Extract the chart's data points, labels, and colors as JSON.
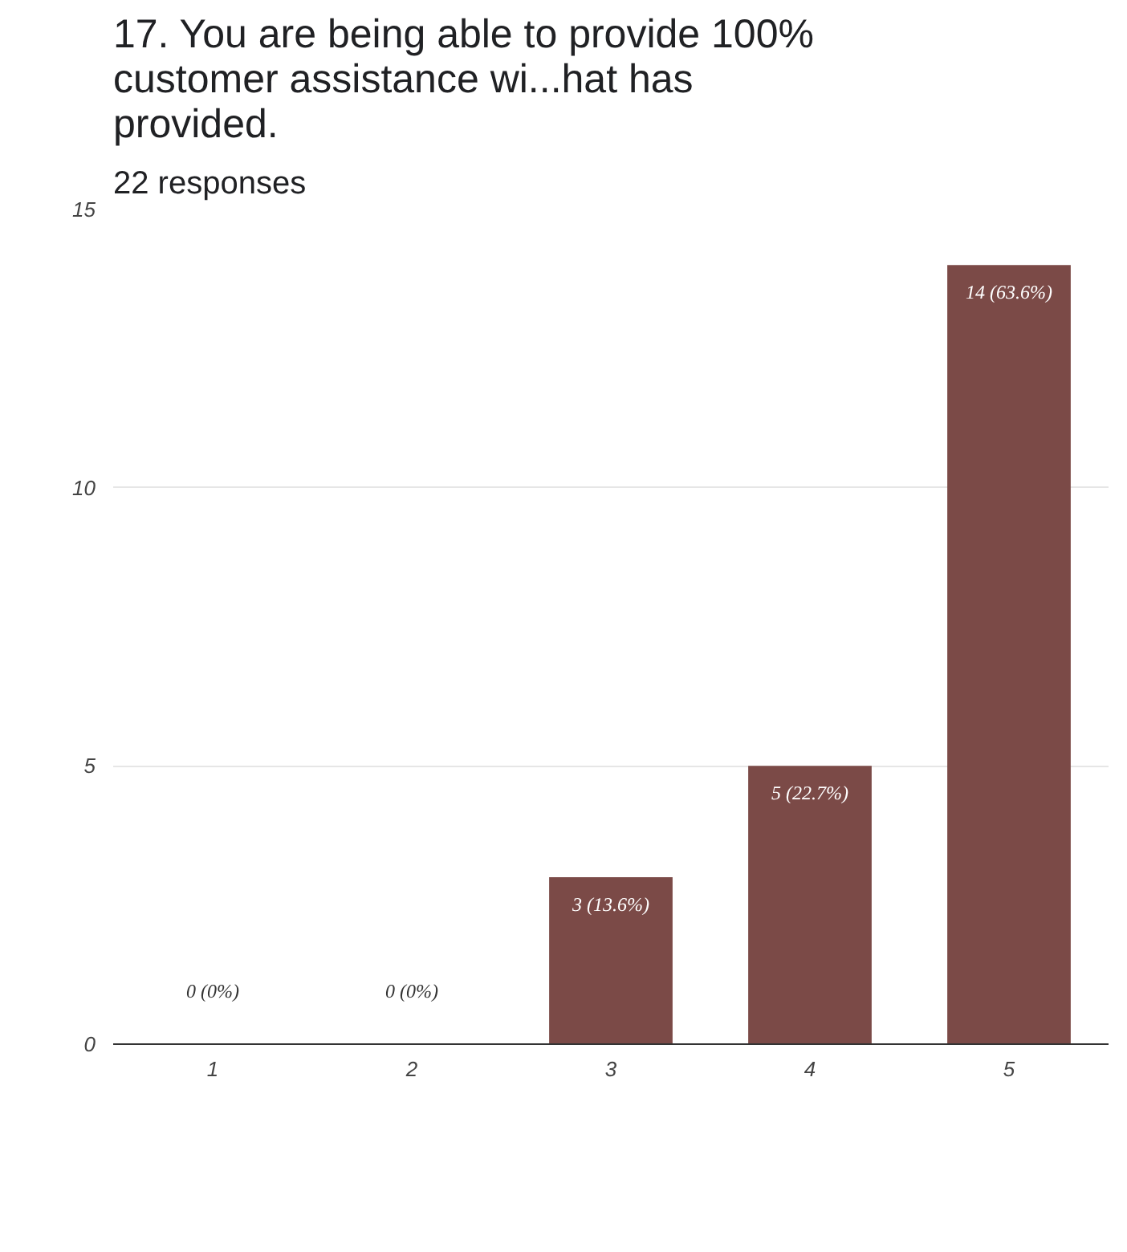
{
  "chart_data": {
    "type": "bar",
    "title": "17. You are being able to provide 100% customer assistance wi...hat has provided.",
    "subtitle": "22 responses",
    "categories": [
      "1",
      "2",
      "3",
      "4",
      "5"
    ],
    "values": [
      0,
      0,
      3,
      5,
      14
    ],
    "value_labels": [
      "0 (0%)",
      "0 (0%)",
      "3 (13.6%)",
      "5 (22.7%)",
      "14 (63.6%)"
    ],
    "color": "#7b4a47",
    "ylim": [
      0,
      15
    ],
    "yticks": [
      0,
      5,
      10,
      15
    ],
    "grid": "y"
  }
}
